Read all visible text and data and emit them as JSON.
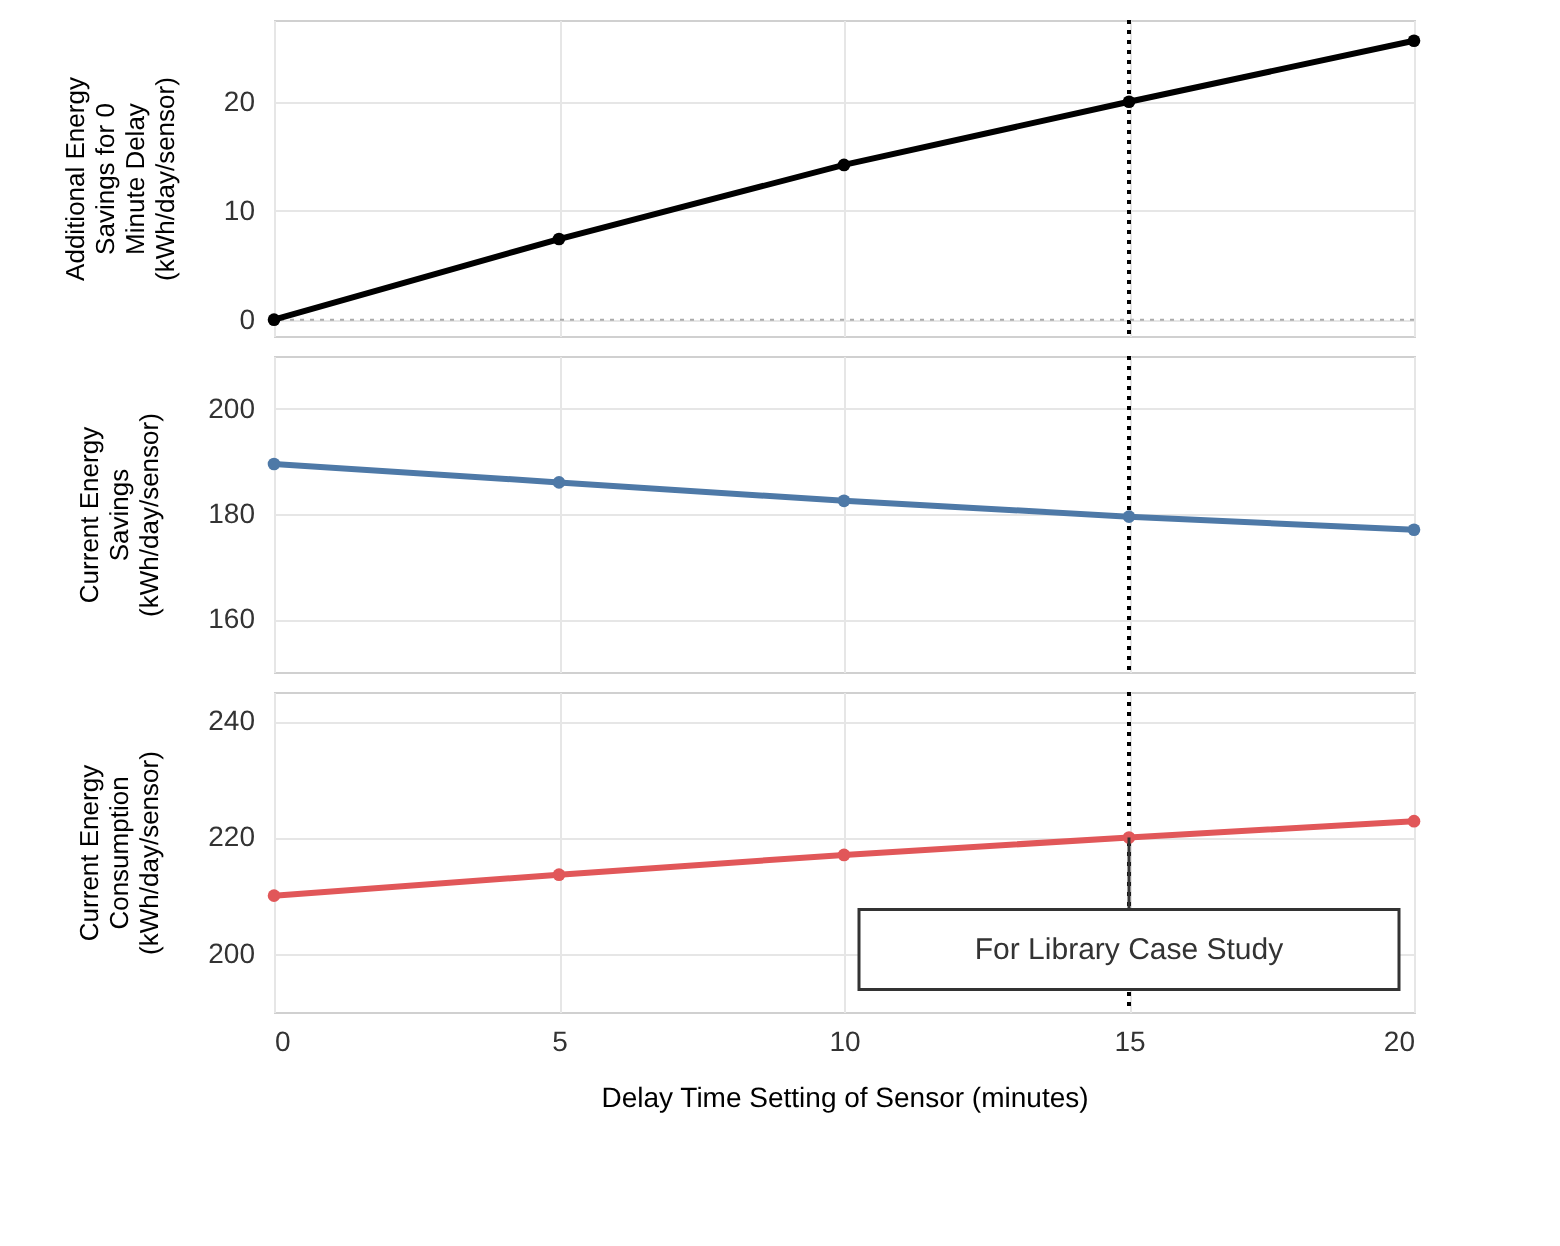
{
  "chart_data": [
    {
      "type": "line",
      "ylabel": "Additional Energy Savings for 0 Minute Delay (kWh/day/sensor)",
      "x": [
        0,
        5,
        10,
        15,
        20
      ],
      "xlim": [
        0,
        20
      ],
      "xticks": [
        0,
        5,
        10,
        15,
        20
      ],
      "ylim": [
        -1.5,
        27.5
      ],
      "yticks": [
        0,
        10,
        20
      ],
      "grid": true,
      "marker": "circle",
      "tick_labels": "y",
      "series": [
        {
          "color": "#000000",
          "values": [
            0,
            7.4,
            14.2,
            20,
            25.6
          ]
        }
      ],
      "ref_lines": [
        {
          "axis": "x",
          "value": 15,
          "color": "#000000",
          "line_style": "dotted"
        },
        {
          "axis": "y",
          "value": 0,
          "color": "#aaaaaa",
          "line_style": "dotted"
        }
      ]
    },
    {
      "type": "line",
      "ylabel": "Current Energy Savings (kWh/day/sensor)",
      "x": [
        0,
        5,
        10,
        15,
        20
      ],
      "xlim": [
        0,
        20
      ],
      "xticks": [
        0,
        5,
        10,
        15,
        20
      ],
      "ylim": [
        150,
        210
      ],
      "yticks": [
        160,
        180,
        200
      ],
      "grid": true,
      "marker": "circle",
      "tick_labels": "y",
      "series": [
        {
          "color": "#4e79a7",
          "values": [
            189.5,
            186,
            182.5,
            179.5,
            177
          ]
        }
      ],
      "ref_lines": [
        {
          "axis": "x",
          "value": 15,
          "color": "#000000",
          "line_style": "dotted"
        }
      ]
    },
    {
      "type": "line",
      "xlabel": "Delay Time Setting of Sensor (minutes)",
      "ylabel": "Current Energy Consumption (kWh/day/sensor)",
      "x": [
        0,
        5,
        10,
        15,
        20
      ],
      "xlim": [
        0,
        20
      ],
      "xticks": [
        0,
        5,
        10,
        15,
        20
      ],
      "ylim": [
        190,
        245
      ],
      "yticks": [
        200,
        220,
        240
      ],
      "grid": true,
      "marker": "circle",
      "series": [
        {
          "color": "#e15759",
          "values": [
            210,
            213.6,
            217,
            220,
            222.8
          ]
        }
      ],
      "ref_lines": [
        {
          "axis": "x",
          "value": 15,
          "color": "#000000",
          "line_style": "dotted"
        }
      ],
      "annotations": [
        {
          "text": "For Library Case Study",
          "x": 15,
          "y": 220
        }
      ]
    }
  ]
}
